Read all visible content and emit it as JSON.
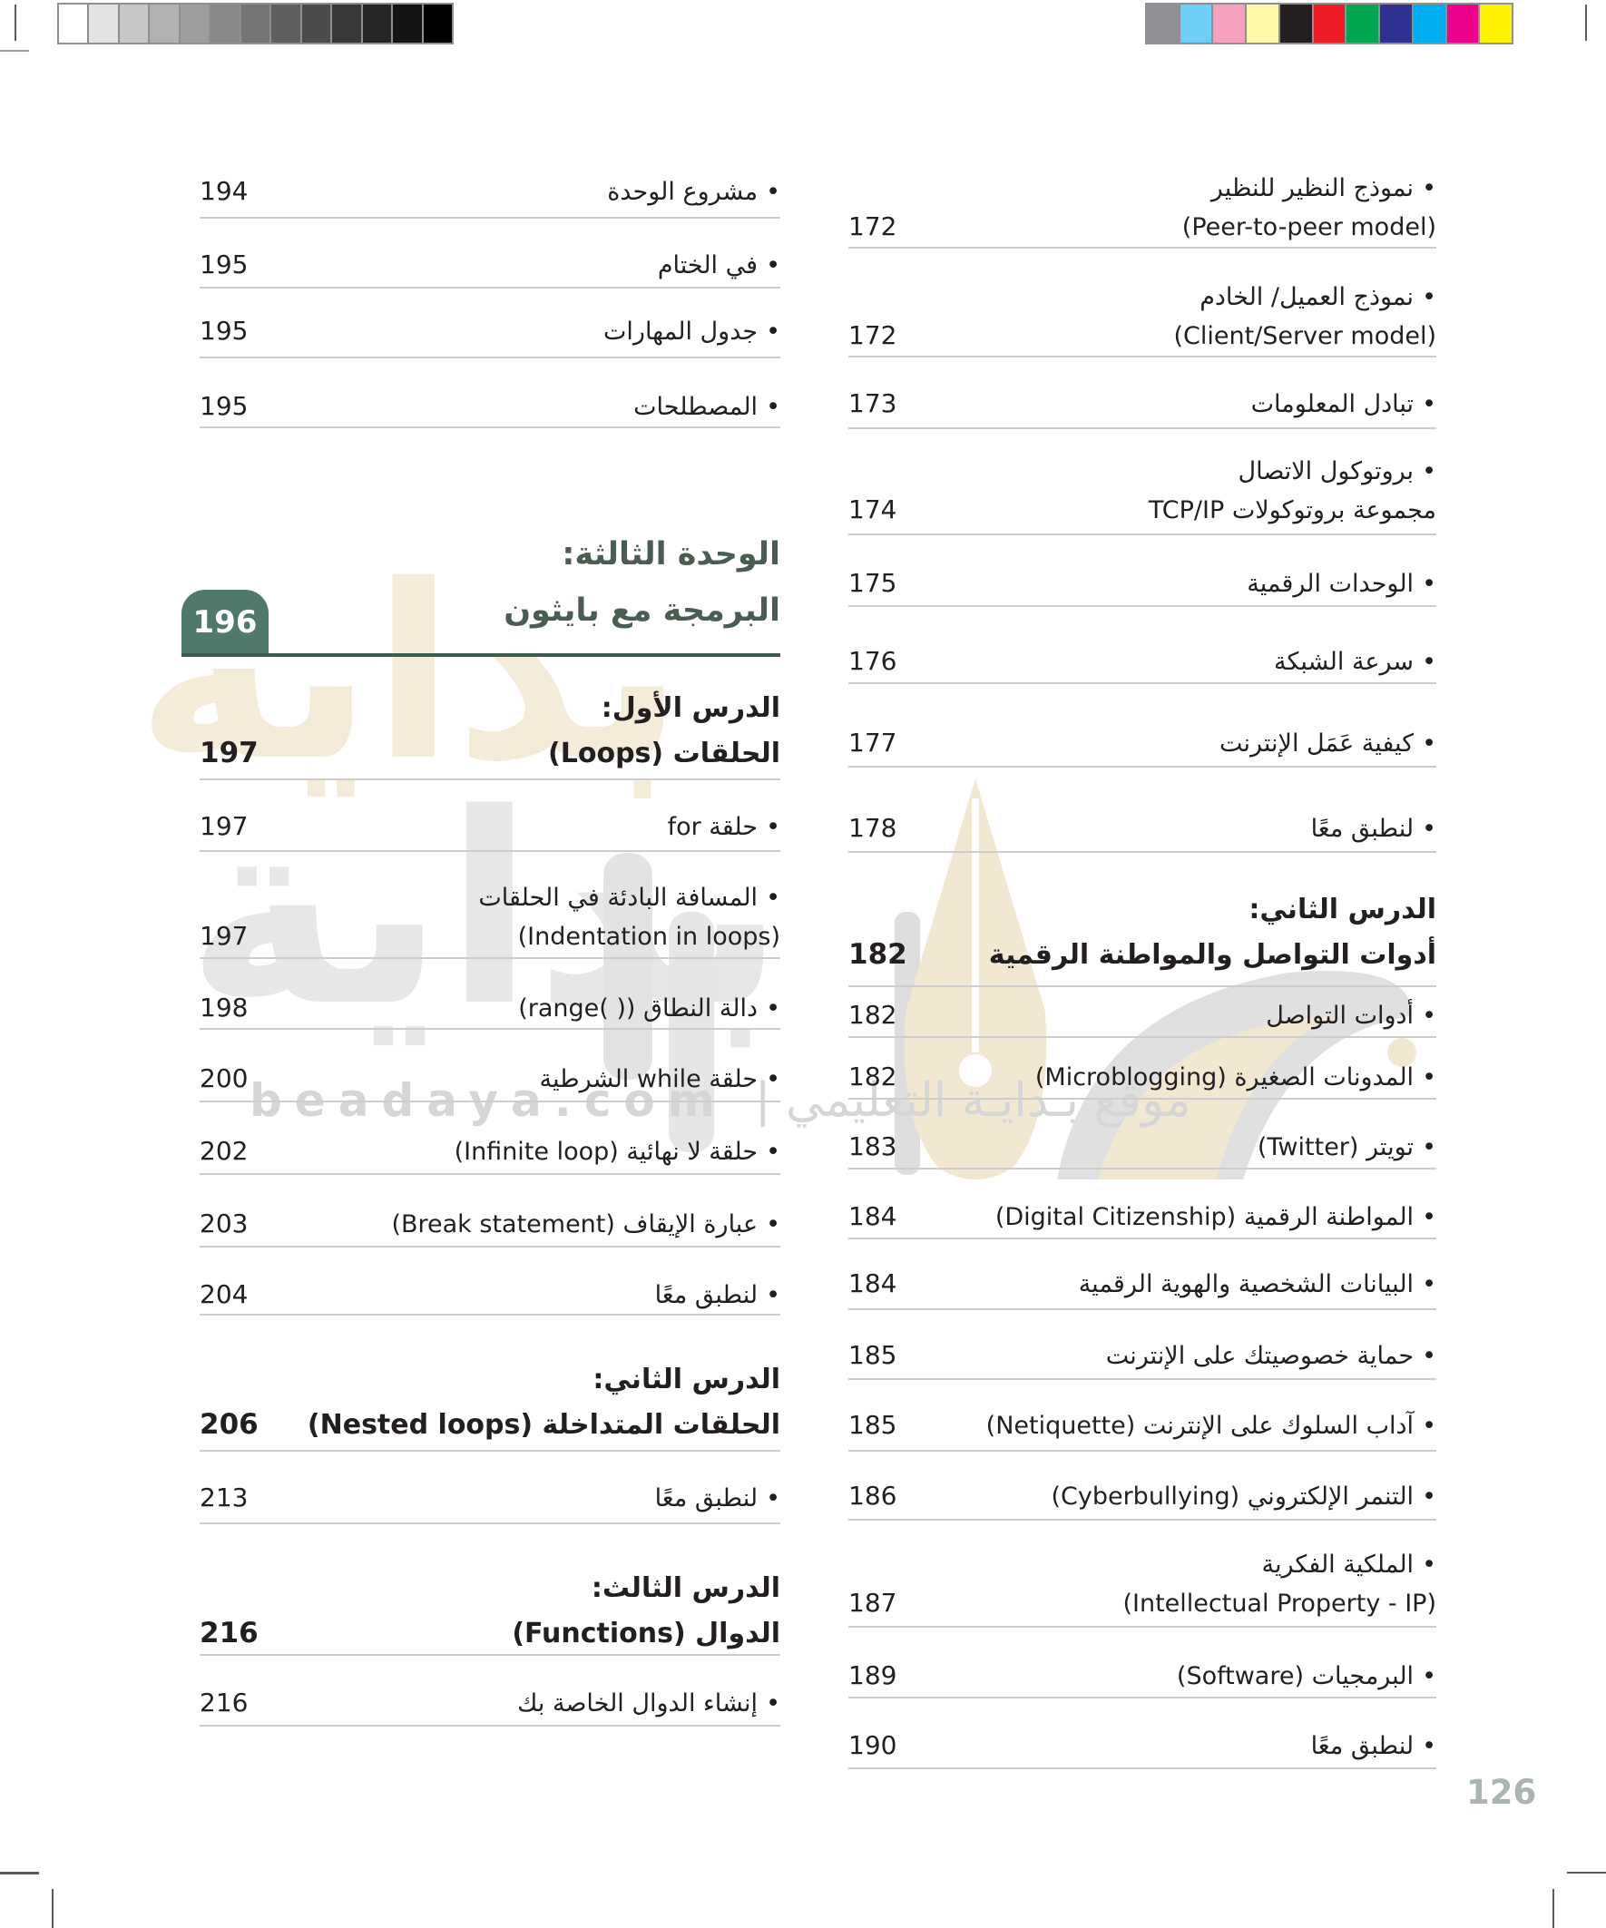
{
  "glyphs": {
    "bullet": "•"
  },
  "page_number": "126",
  "watermark": {
    "big_word": "بداية",
    "latin": "beadaya.com",
    "arabic": "موقع بـدايـة التعليمي |"
  },
  "print_marks": {
    "grayscale": [
      "#000000",
      "#141414",
      "#262626",
      "#383838",
      "#4b4b4b",
      "#5f5f5f",
      "#747474",
      "#898989",
      "#9d9d9d",
      "#b1b1b1",
      "#c7c7c7",
      "#e3e3e3",
      "#ffffff"
    ],
    "colors": [
      "#fff200",
      "#ec008c",
      "#00aeef",
      "#2e3192",
      "#00a651",
      "#ed1c24",
      "#231f20",
      "#fff9a8",
      "#f5a0bf",
      "#6dcff6",
      "#8d8f92"
    ]
  },
  "unit": {
    "badge": "196",
    "title_line1": "الوحدة الثالثة:",
    "title_line2": "البرمجة مع بايثون"
  },
  "right_column": {
    "entries": [
      {
        "ar": "نموذج النظير للنظير",
        "en": "(Peer-to-peer model)",
        "page": "172"
      },
      {
        "ar": "نموذج العميل/ الخادم",
        "en": "(Client/Server model)",
        "page": "172"
      },
      {
        "ar": "تبادل المعلومات",
        "page": "173"
      },
      {
        "ar": "بروتوكول الاتصال",
        "ar2": "مجموعة بروتوكولات TCP/IP",
        "page": "174"
      },
      {
        "ar": "الوحدات الرقمية",
        "page": "175"
      },
      {
        "ar": "سرعة الشبكة",
        "page": "176"
      },
      {
        "ar": "كيفية عَمَل الإنترنت",
        "page": "177"
      },
      {
        "ar": "لنطبق معًا",
        "page": "178"
      },
      {
        "ar": "أدوات التواصل",
        "page": "182"
      },
      {
        "ar": "المدونات الصغيرة",
        "en": "(Microblogging)",
        "page": "182"
      },
      {
        "ar": "تويتر",
        "en": "(Twitter)",
        "page": "183"
      },
      {
        "ar": "المواطنة الرقمية",
        "en": "(Digital Citizenship)",
        "page": "184"
      },
      {
        "ar": "البيانات الشخصية والهوية الرقمية",
        "page": "184"
      },
      {
        "ar": "حماية خصوصيتك على الإنترنت",
        "page": "185"
      },
      {
        "ar": "آداب السلوك على الإنترنت",
        "en": "(Netiquette)",
        "page": "185"
      },
      {
        "ar": "التنمر الإلكتروني",
        "en": "(Cyberbullying)",
        "page": "186"
      },
      {
        "ar": "الملكية الفكرية",
        "en": "(Intellectual Property - IP)",
        "page": "187"
      },
      {
        "ar": "البرمجيات",
        "en": "(Software)",
        "page": "189"
      },
      {
        "ar": "لنطبق معًا",
        "page": "190"
      }
    ],
    "lesson2_header": {
      "line1": "الدرس الثاني:",
      "line2": "أدوات التواصل والمواطنة الرقمية",
      "page": "182"
    }
  },
  "left_column": {
    "entries": [
      {
        "ar": "مشروع الوحدة",
        "page": "194"
      },
      {
        "ar": "في الختام",
        "page": "195"
      },
      {
        "ar": "جدول المهارات",
        "page": "195"
      },
      {
        "ar": "المصطلحات",
        "page": "195"
      },
      {
        "ar": "حلقة for",
        "page": "197"
      },
      {
        "ar": "المسافة البادئة في الحلقات",
        "en": "(Indentation in loops)",
        "page": "197"
      },
      {
        "ar": "دالة النطاق",
        "en": "(range( ))",
        "page": "198"
      },
      {
        "ar": "حلقة while الشرطية",
        "page": "200"
      },
      {
        "ar": "حلقة لا نهائية",
        "en": "(Infinite loop)",
        "page": "202"
      },
      {
        "ar": "عبارة الإيقاف",
        "en": "(Break statement)",
        "page": "203"
      },
      {
        "ar": "لنطبق معًا",
        "page": "204"
      },
      {
        "ar": "لنطبق معًا",
        "page": "213"
      },
      {
        "ar": "إنشاء الدوال الخاصة بك",
        "page": "216"
      }
    ],
    "lesson1_header": {
      "line1": "الدرس الأول:",
      "line2_ar": "الحلقات",
      "line2_en": "(Loops)",
      "page": "197"
    },
    "lesson2_header": {
      "line1": "الدرس الثاني:",
      "line2_ar": "الحلقات المتداخلة",
      "line2_en": "(Nested loops)",
      "page": "206"
    },
    "lesson3_header": {
      "line1": "الدرس الثالث:",
      "line2_ar": "الدوال",
      "line2_en": "(Functions)",
      "page": "216"
    }
  }
}
